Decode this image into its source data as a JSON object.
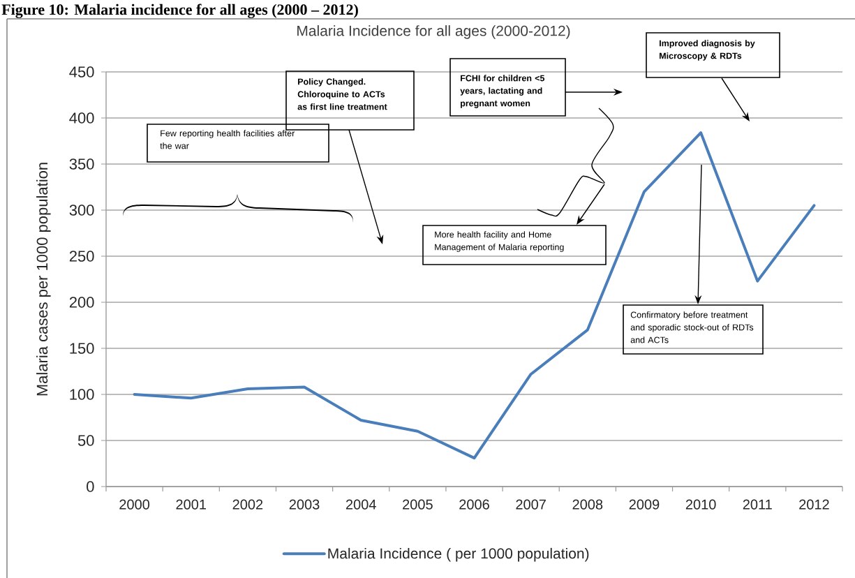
{
  "chart_data": {
    "type": "line",
    "title": "Malaria Incidence for all ages (2000-2012)",
    "ylabel": "Malaria cases per 1000 population",
    "categories": [
      "2000",
      "2001",
      "2002",
      "2003",
      "2004",
      "2005",
      "2006",
      "2007",
      "2008",
      "2009",
      "2010",
      "2011",
      "2012"
    ],
    "series": [
      {
        "name": "Malaria Incidence ( per 1000 population)",
        "color": "#4a7ebb",
        "values": [
          100,
          96,
          106,
          108,
          72,
          60,
          31,
          122,
          170,
          320,
          384,
          223,
          305
        ]
      }
    ],
    "ylim": [
      0,
      450
    ],
    "yticks": [
      0,
      50,
      100,
      150,
      200,
      250,
      300,
      350,
      400,
      450
    ],
    "grid": "y",
    "legend": "bottom",
    "marker": "none",
    "line_style": "solid",
    "annotations": [
      "Figure 10: Malaria incidence for all ages (2000 – 2012)",
      "Few reporting health facilities after the war",
      "Policy Changed. Chloroquine to ACTs as first line treatment",
      "FCHI for children <5 years, lactating and pregnant women",
      "Improved diagnosis by Microscopy & RDTs",
      "More health facility and Home Management of Malaria reporting",
      "Confirmatory before treatment and sporadic stock-out of RDTs and ACTs"
    ]
  }
}
